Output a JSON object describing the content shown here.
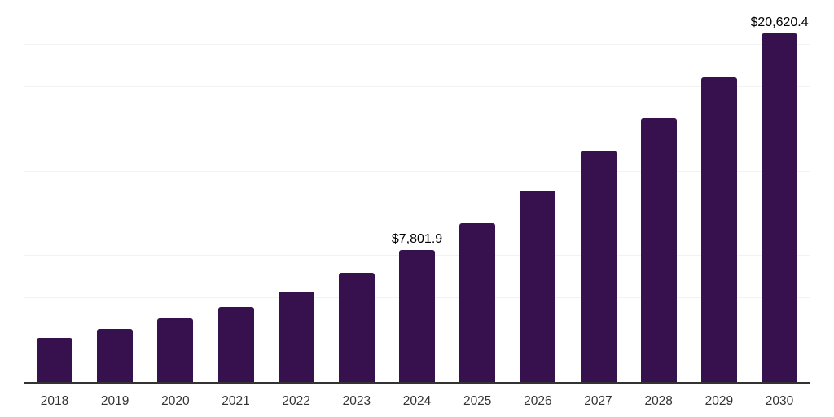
{
  "chart_data": {
    "type": "bar",
    "categories": [
      "2018",
      "2019",
      "2020",
      "2021",
      "2022",
      "2023",
      "2024",
      "2025",
      "2026",
      "2027",
      "2028",
      "2029",
      "2030"
    ],
    "values": [
      2600,
      3120,
      3760,
      4430,
      5330,
      6450,
      7801.9,
      9400,
      11340,
      13700,
      15620,
      18010,
      20620.4
    ],
    "data_labels": {
      "2024": "$7,801.9",
      "2030": "$20,620.4"
    },
    "ylim": [
      0,
      22500
    ],
    "grid_interval": 2500,
    "grid": true,
    "legend": false,
    "bar_color": "#36114E",
    "grid_color": "#f2f2f2",
    "axis_color": "#333333",
    "tick_label_color": "#333333",
    "value_label_color": "#000000"
  },
  "layout_hints": {
    "x_tick_labels_position": "bottom",
    "value_labels_position": "above-bar"
  }
}
